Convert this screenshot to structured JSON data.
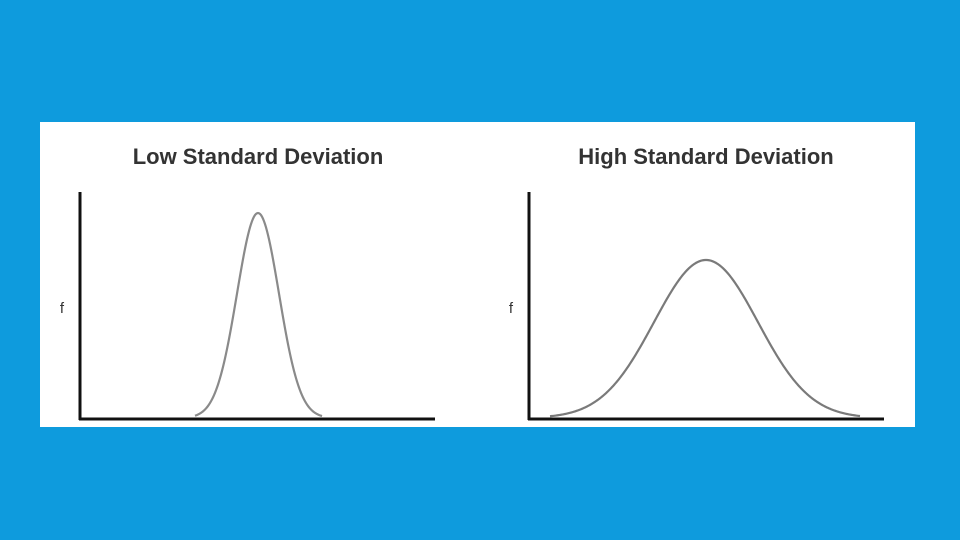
{
  "panels": [
    {
      "title": "Low Standard Deviation",
      "y_label": "f"
    },
    {
      "title": "High Standard Deviation",
      "y_label": "f"
    }
  ]
}
